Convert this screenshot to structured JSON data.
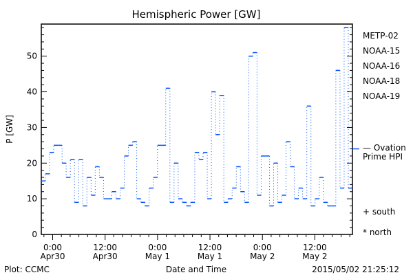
{
  "chart_data": {
    "type": "line",
    "title": "Hemispheric Power [GW]",
    "xlabel": "Date and Time",
    "ylabel": "P [GW]",
    "ylim": [
      0,
      59
    ],
    "xlim_hours_from_apr30_0000": [
      -2.6,
      68.6
    ],
    "yticks": [
      "0",
      "10",
      "20",
      "30",
      "40",
      "50"
    ],
    "xticks": [
      {
        "hour": 0,
        "time": "0:00",
        "date": "Apr30"
      },
      {
        "hour": 12,
        "time": "12:00",
        "date": "Apr30"
      },
      {
        "hour": 24,
        "time": "0:00",
        "date": "May 1"
      },
      {
        "hour": 36,
        "time": "12:00",
        "date": "May 1"
      },
      {
        "hour": 48,
        "time": "0:00",
        "date": "May 2"
      },
      {
        "hour": 60,
        "time": "12:00",
        "date": "May 2"
      }
    ],
    "series": [
      {
        "name": "Ovation Prime HPI",
        "color": "#0050ff",
        "style": "step",
        "values": [
          15,
          17,
          23,
          25,
          25,
          20,
          16,
          21,
          9,
          21,
          8,
          16,
          11,
          19,
          16,
          10,
          10,
          12,
          10,
          13,
          22,
          25,
          26,
          10,
          9,
          8,
          13,
          16,
          25,
          25,
          41,
          9,
          20,
          10,
          9,
          8,
          9,
          23,
          21,
          23,
          10,
          40,
          28,
          39,
          9,
          10,
          13,
          19,
          12,
          9,
          50,
          51,
          11,
          22,
          22,
          8,
          20,
          9,
          11,
          26,
          19,
          10,
          13,
          10,
          36,
          8,
          10,
          16,
          9,
          8,
          8,
          46,
          13,
          58,
          13
        ]
      }
    ],
    "ovation_marker_value": 24,
    "legend": {
      "placement": "right",
      "satellites": [
        {
          "label": "METP-02",
          "color": "#000000"
        },
        {
          "label": "NOAA-15",
          "color": "#0000ff"
        },
        {
          "label": "NOAA-16",
          "color": "#00b4ff"
        },
        {
          "label": "NOAA-18",
          "color": "#33ee55"
        },
        {
          "label": "NOAA-19",
          "color": "#ff8c00"
        }
      ],
      "ovation_line1": "— Ovation",
      "ovation_line2": "Prime HPI",
      "ovation_color": "#0050ff",
      "south": "+ south",
      "north": "* north"
    }
  },
  "footer": {
    "left": "Plot: CCMC",
    "right": "2015/05/02 21:25:12"
  }
}
